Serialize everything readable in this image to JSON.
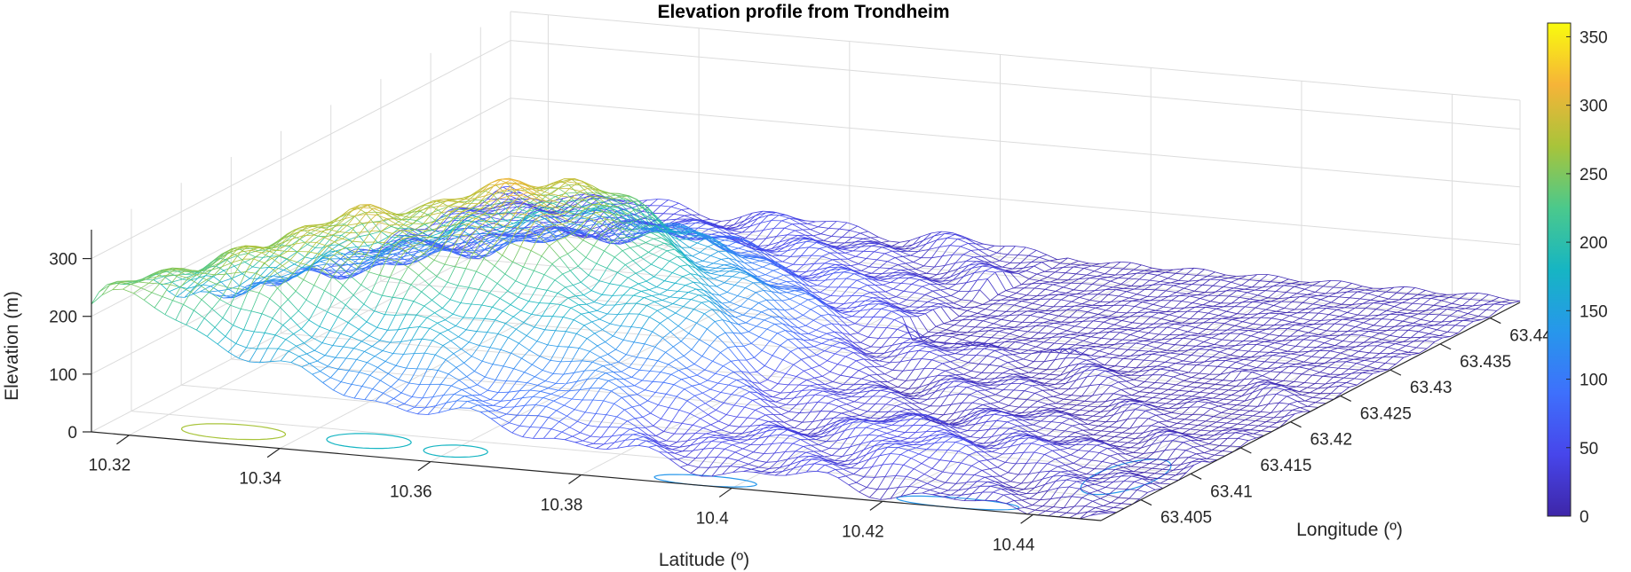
{
  "chart_data": {
    "type": "surface-mesh",
    "title": "Elevation profile from Trondheim",
    "xlabel": "Latitude (º)",
    "ylabel": "Longitude (º)",
    "zlabel": "Elevation (m)",
    "x_ticks": [
      "10.32",
      "10.34",
      "10.36",
      "10.38",
      "10.4",
      "10.42",
      "10.44"
    ],
    "x_tick_values": [
      10.32,
      10.34,
      10.36,
      10.38,
      10.4,
      10.42,
      10.44
    ],
    "xlim": [
      10.315,
      10.449
    ],
    "y_ticks": [
      "63.405",
      "63.41",
      "63.415",
      "63.42",
      "63.425",
      "63.43",
      "63.435",
      "63.44"
    ],
    "y_tick_values": [
      63.405,
      63.41,
      63.415,
      63.42,
      63.425,
      63.43,
      63.435,
      63.44
    ],
    "ylim": [
      63.401,
      63.443
    ],
    "z_ticks": [
      "0",
      "100",
      "200",
      "300"
    ],
    "z_tick_values": [
      0,
      100,
      200,
      300
    ],
    "zlim": [
      0,
      350
    ],
    "colorbar": {
      "ticks": [
        "0",
        "50",
        "100",
        "150",
        "200",
        "250",
        "300",
        "350"
      ],
      "tick_values": [
        0,
        50,
        100,
        150,
        200,
        250,
        300,
        350
      ],
      "range": [
        0,
        360
      ]
    },
    "colormap": "parula",
    "grid": true,
    "contour_at_base": true,
    "terrain_features": [
      {
        "peak_lat": 10.355,
        "peak_lon": 63.418,
        "elevation": 355
      },
      {
        "peak_lat": 10.335,
        "peak_lon": 63.412,
        "elevation": 300
      },
      {
        "sea_level_flat": true,
        "lat_range": [
          10.4,
          10.449
        ],
        "lon_range": [
          63.432,
          63.443
        ],
        "elevation": 0
      }
    ]
  }
}
